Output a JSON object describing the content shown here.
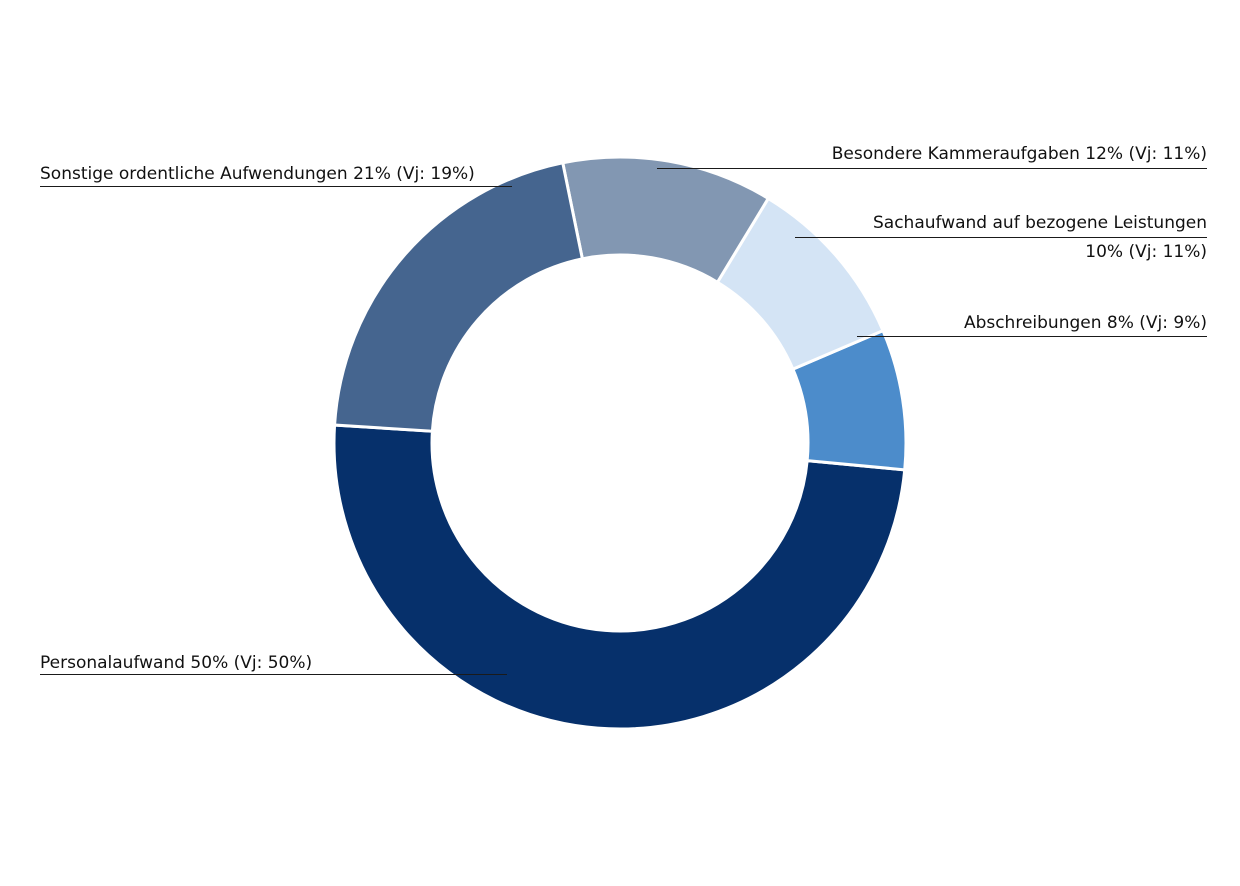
{
  "chart_data": {
    "type": "pie",
    "donut": true,
    "legend": "outside-labels",
    "slices": [
      {
        "label": "Personalaufwand",
        "value": 50,
        "prev_year": 50,
        "color": "#06306b"
      },
      {
        "label": "Sonstige ordentliche Aufwendungen",
        "value": 21,
        "prev_year": 19,
        "color": "#45658f"
      },
      {
        "label": "Besondere Kammeraufgaben",
        "value": 12,
        "prev_year": 11,
        "color": "#8297b2"
      },
      {
        "label": "Sachaufwand auf bezogene Leistungen",
        "value": 10,
        "prev_year": 11,
        "color": "#d4e4f5"
      },
      {
        "label": "Abschreibungen",
        "value": 8,
        "prev_year": 9,
        "color": "#4c8ccb"
      }
    ],
    "labels": {
      "personal": "Personalaufwand 50% (Vj: 50%)",
      "sonstige": "Sonstige ordentliche Aufwendungen 21% (Vj: 19%)",
      "besondere": "Besondere Kammeraufgaben 12% (Vj: 11%)",
      "sachaufwand_line1": "Sachaufwand auf bezogene Leistungen",
      "sachaufwand_line2": "10% (Vj: 11%)",
      "abschreibungen": "Abschreibungen 8% (Vj: 9%)"
    }
  }
}
